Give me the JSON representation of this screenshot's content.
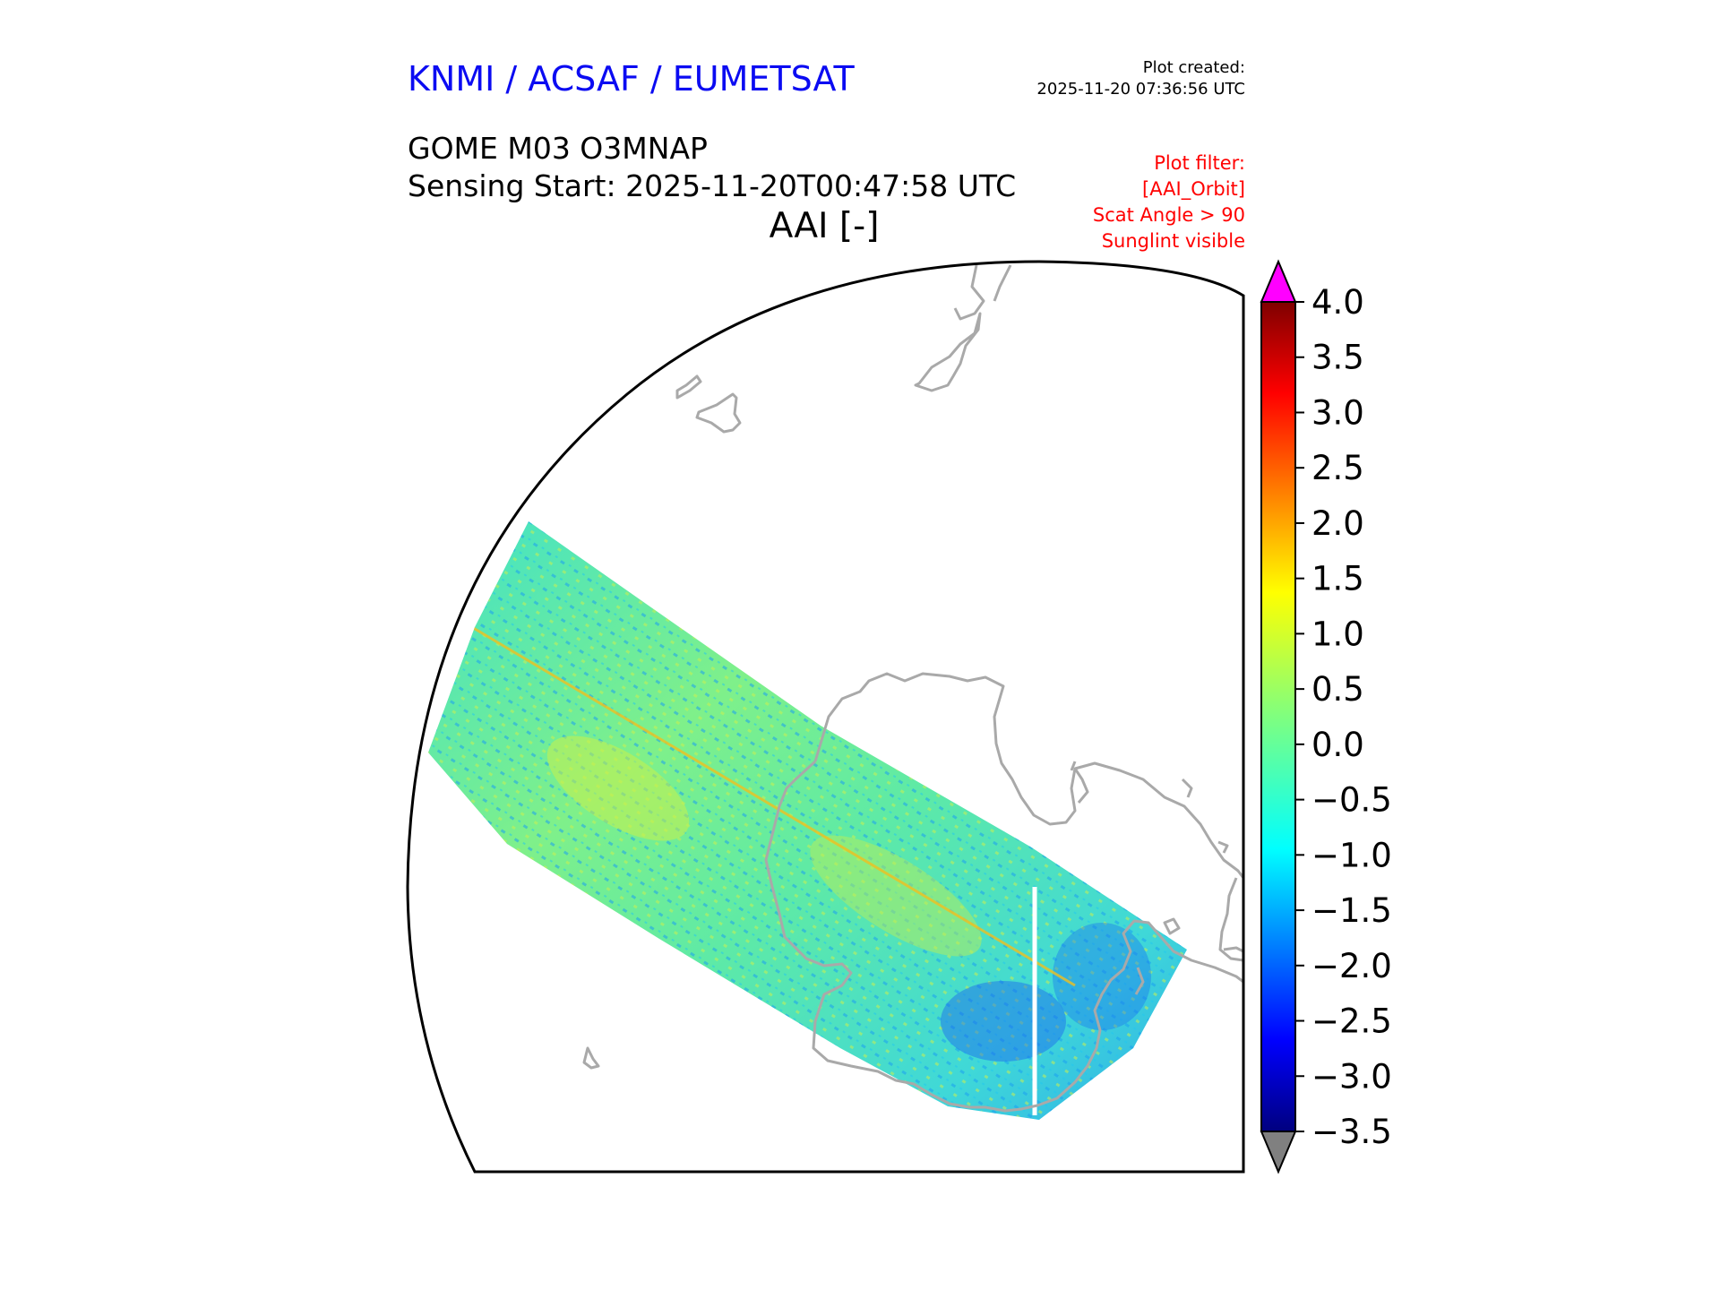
{
  "header": {
    "organization": "KNMI / ACSAF / EUMETSAT",
    "plot_created_label": "Plot created:",
    "plot_created_time": "2025-11-20 07:36:56 UTC",
    "product": "GOME M03 O3MNAP",
    "sensing_start": "Sensing Start: 2025-11-20T00:47:58 UTC",
    "parameter": "AAI [-]"
  },
  "filters": {
    "label": "Plot filter:",
    "items": [
      "[AAI_Orbit]",
      "Scat Angle > 90",
      "Sunglint visible"
    ]
  },
  "colorbar": {
    "min": -3.5,
    "max": 4.0,
    "ticks": [
      "4.0",
      "3.5",
      "3.0",
      "2.5",
      "2.0",
      "1.5",
      "1.0",
      "0.5",
      "0.0",
      "−0.5",
      "−1.0",
      "−1.5",
      "−2.0",
      "−2.5",
      "−3.0",
      "−3.5"
    ],
    "over_color": "#ff00ff",
    "under_color": "#808080",
    "colormap": "jet"
  },
  "map": {
    "projection": "polar stereographic (south)",
    "coastline_color": "#a9a9a9",
    "swath_dominant_color": "#3be8c8"
  }
}
